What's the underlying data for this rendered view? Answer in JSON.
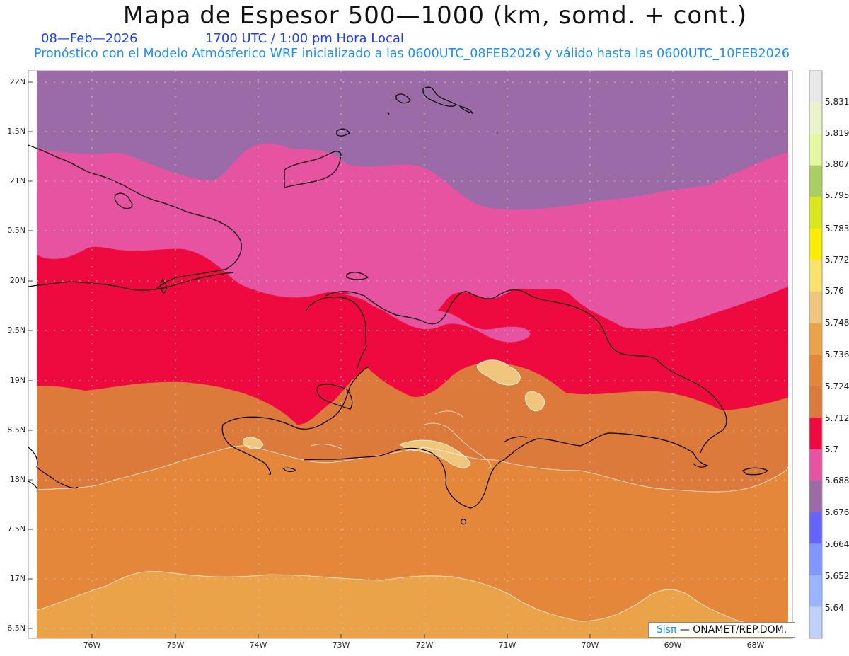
{
  "header": {
    "title": "Mapa de Espesor 500—1000 (km, somd. + cont.)",
    "date": "08—Feb—2026",
    "time": "1700 UTC / 1:00 pm Hora Local",
    "subtitle": "Pronóstico con el Modelo Atmósferico WRF inicializado a las 0600UTC_08FEB2026 y válido hasta las  0600UTC_10FEB2026"
  },
  "map": {
    "lat_labels": [
      "22N",
      "1.5N",
      "21N",
      "0.5N",
      "20N",
      "9.5N",
      "19N",
      "8.5N",
      "18N",
      "7.5N",
      "17N",
      "6.5N"
    ],
    "lon_labels": [
      "76W",
      "75W",
      "74W",
      "73W",
      "72W",
      "71W",
      "70W",
      "69W",
      "68W"
    ],
    "fill_colors": {
      "band_5676": "#9a6ba6",
      "band_5688": "#e553a1",
      "band_5700": "#ee0a3e",
      "band_5712": "#db7a3a",
      "band_5724": "#e5873b",
      "band_5736": "#eba34a",
      "band_5748": "#f0c67c",
      "coast": "#000000",
      "contour": "#ffffff",
      "grid": "#bbbbbb"
    }
  },
  "colorbar": {
    "values": [
      "5.831",
      "5.819",
      "5.807",
      "5.795",
      "5.783",
      "5.772",
      "5.76",
      "5.748",
      "5.736",
      "5.724",
      "5.712",
      "5.7",
      "5.688",
      "5.676",
      "5.664",
      "5.652",
      "5.64"
    ],
    "colors": [
      "#e8e8e8",
      "#eaf2cb",
      "#e2f7a0",
      "#a9cf62",
      "#d8e81c",
      "#fbed03",
      "#fbe16d",
      "#f0c67c",
      "#eba34a",
      "#e5873b",
      "#db7a3a",
      "#ee0a3e",
      "#e553a1",
      "#9a6ba6",
      "#6464ff",
      "#8296ff",
      "#9ab4ff",
      "#c0d0ff"
    ]
  },
  "credit": {
    "sis": "Sisπ",
    "org": "— ONAMET/REP.DOM."
  }
}
